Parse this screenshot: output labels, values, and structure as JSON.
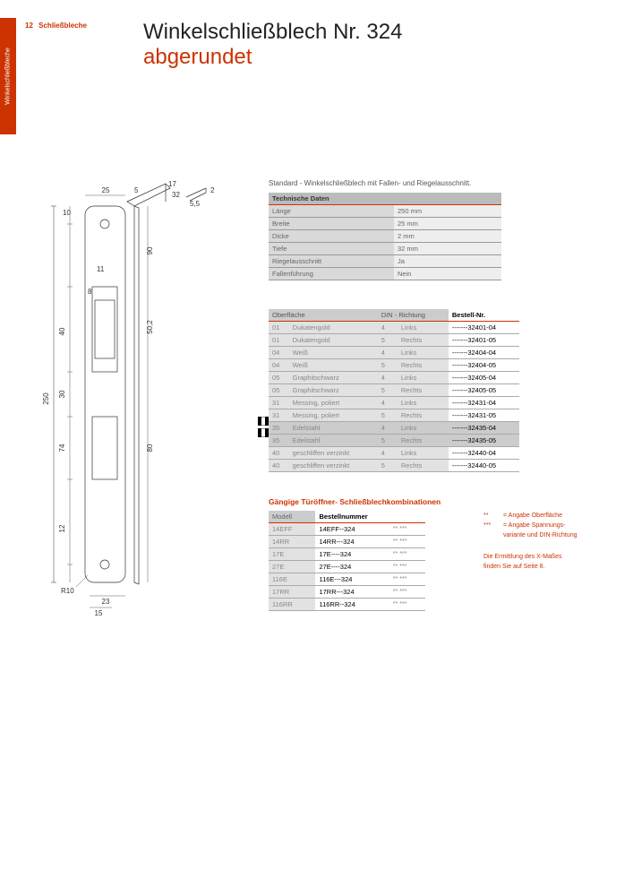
{
  "page": {
    "number": "12",
    "category": "Schließbleche",
    "tabLabel": "Winkelschließbleche"
  },
  "title": {
    "main": "Winkelschließblech Nr. 324",
    "sub": "abgerundet"
  },
  "diagram": {
    "dims": {
      "L250": "250",
      "d25": "25",
      "d5": "5",
      "d10": "10",
      "d11": "11",
      "d8": "8",
      "d40": "40",
      "d30": "30",
      "d74": "74",
      "d12": "12",
      "d15": "15",
      "d23": "23",
      "d50_2": "50,2",
      "d90": "90",
      "d80": "80",
      "d2": "2",
      "d55": "5,5",
      "d32": "32",
      "d17": "17",
      "r10": "R10"
    }
  },
  "description": "Standard - Winkelschließblech mit Fallen- und Riegelausschnitt.",
  "techTable": {
    "header": "Technische Daten",
    "rows": [
      {
        "label": "Länge",
        "value": "250 mm"
      },
      {
        "label": "Breite",
        "value": "25 mm"
      },
      {
        "label": "Dicke",
        "value": "2 mm"
      },
      {
        "label": "Tiefe",
        "value": "32 mm"
      },
      {
        "label": "Riegelausschnitt",
        "value": "Ja"
      },
      {
        "label": "Fallenführung",
        "value": "Nein"
      }
    ]
  },
  "orderTable": {
    "headers": {
      "c1": "Oberfläche",
      "c2": "DIN - Richtung",
      "c3": "Bestell-Nr."
    },
    "rows": [
      {
        "code": "01",
        "name": "Dukatengold",
        "din": "4",
        "dir": "Links",
        "nr": "-------32401-04"
      },
      {
        "code": "01",
        "name": "Dukatengold",
        "din": "5",
        "dir": "Rechts",
        "nr": "-------32401-05"
      },
      {
        "code": "04",
        "name": "Weiß",
        "din": "4",
        "dir": "Links",
        "nr": "-------32404-04"
      },
      {
        "code": "04",
        "name": "Weiß",
        "din": "5",
        "dir": "Rechts",
        "nr": "-------32404-05"
      },
      {
        "code": "05",
        "name": "Graphitschwarz",
        "din": "4",
        "dir": "Links",
        "nr": "-------32405-04"
      },
      {
        "code": "05",
        "name": "Graphitschwarz",
        "din": "5",
        "dir": "Rechts",
        "nr": "-------32405-05"
      },
      {
        "code": "31",
        "name": "Messing, poliert",
        "din": "4",
        "dir": "Links",
        "nr": "-------32431-04"
      },
      {
        "code": "31",
        "name": "Messing, poliert",
        "din": "5",
        "dir": "Rechts",
        "nr": "-------32431-05"
      },
      {
        "code": "35",
        "name": "Edelstahl",
        "din": "4",
        "dir": "Links",
        "nr": "-------32435-04",
        "mark": true
      },
      {
        "code": "35",
        "name": "Edelstahl",
        "din": "5",
        "dir": "Rechts",
        "nr": "-------32435-05",
        "mark": true
      },
      {
        "code": "40",
        "name": "geschliffen verzinkt",
        "din": "4",
        "dir": "Links",
        "nr": "-------32440-04"
      },
      {
        "code": "40",
        "name": "geschliffen verzinkt",
        "din": "5",
        "dir": "Rechts",
        "nr": "-------32440-05"
      }
    ]
  },
  "comboTitle": "Gängige Türöffner- Schließblechkombinationen",
  "comboTable": {
    "headers": {
      "c1": "Modell",
      "c2": "Bestellnummer"
    },
    "rows": [
      {
        "model": "14EFF",
        "nr": "14EFF--324",
        "stars": "**  ***"
      },
      {
        "model": "14RR",
        "nr": "14RR---324",
        "stars": "**  ***"
      },
      {
        "model": "17E",
        "nr": "17E----324",
        "stars": "**  ***"
      },
      {
        "model": "27E",
        "nr": "27E----324",
        "stars": "**  ***"
      },
      {
        "model": "116E",
        "nr": "116E---324",
        "stars": "**  ***"
      },
      {
        "model": "17RR",
        "nr": "17RR---324",
        "stars": "**  ***"
      },
      {
        "model": "116RR",
        "nr": "116RR--324",
        "stars": "**  ***"
      }
    ]
  },
  "legend": {
    "l1sym": "**",
    "l1": "= Angabe Oberfläche",
    "l2sym": "***",
    "l2": "= Angabe Spannungs-",
    "l2b": "variante und DIN-Richtung",
    "note1": "Die Ermittlung des X-Maßes",
    "note2": "finden Sie auf Seite 8."
  }
}
